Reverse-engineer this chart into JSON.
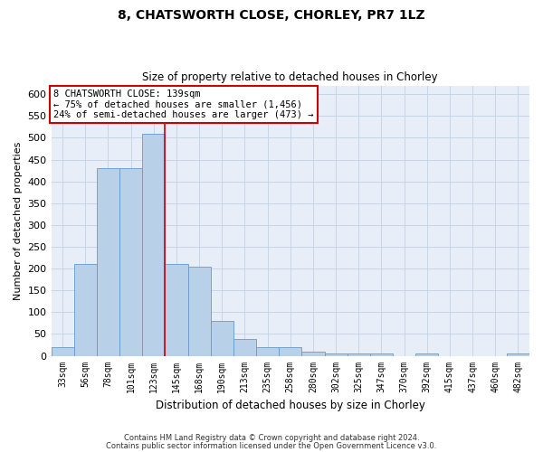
{
  "title": "8, CHATSWORTH CLOSE, CHORLEY, PR7 1LZ",
  "subtitle": "Size of property relative to detached houses in Chorley",
  "xlabel": "Distribution of detached houses by size in Chorley",
  "ylabel": "Number of detached properties",
  "footer_line1": "Contains HM Land Registry data © Crown copyright and database right 2024.",
  "footer_line2": "Contains public sector information licensed under the Open Government Licence v3.0.",
  "categories": [
    "33sqm",
    "56sqm",
    "78sqm",
    "101sqm",
    "123sqm",
    "145sqm",
    "168sqm",
    "190sqm",
    "213sqm",
    "235sqm",
    "258sqm",
    "280sqm",
    "302sqm",
    "325sqm",
    "347sqm",
    "370sqm",
    "392sqm",
    "415sqm",
    "437sqm",
    "460sqm",
    "482sqm"
  ],
  "values": [
    20,
    210,
    430,
    430,
    510,
    210,
    205,
    80,
    38,
    20,
    20,
    10,
    5,
    5,
    5,
    0,
    5,
    0,
    0,
    0,
    5
  ],
  "bar_color": "#b8d0e8",
  "bar_edge_color": "#6699cc",
  "annotation_line1": "8 CHATSWORTH CLOSE: 139sqm",
  "annotation_line2": "← 75% of detached houses are smaller (1,456)",
  "annotation_line3": "24% of semi-detached houses are larger (473) →",
  "vline_x": 4.5,
  "vline_color": "#cc0000",
  "grid_color": "#c8d4e8",
  "ylim": [
    0,
    620
  ],
  "yticks": [
    0,
    50,
    100,
    150,
    200,
    250,
    300,
    350,
    400,
    450,
    500,
    550,
    600
  ],
  "background_color": "#e8eef8",
  "plot_bg_color": "#e8eef8"
}
